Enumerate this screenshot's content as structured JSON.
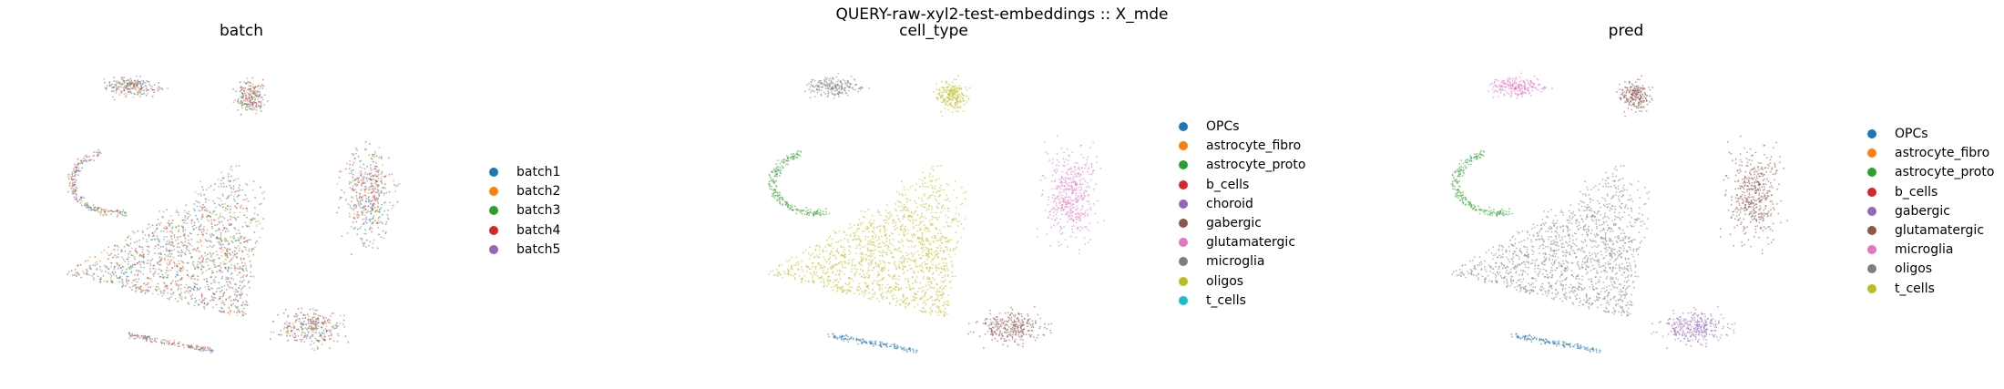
{
  "figure": {
    "suptitle": "QUERY-raw-xyl2-test-embeddings :: X_mde"
  },
  "chart_data": [
    {
      "type": "scatter",
      "title": "batch",
      "legend_position": "right",
      "categories": [
        "batch1",
        "batch2",
        "batch3",
        "batch4",
        "batch5"
      ],
      "colors": [
        "#1f77b4",
        "#ff7f0e",
        "#2ca02c",
        "#d62728",
        "#9467bd"
      ]
    },
    {
      "type": "scatter",
      "title": "cell_type",
      "legend_position": "right",
      "categories": [
        "OPCs",
        "astrocyte_fibro",
        "astrocyte_proto",
        "b_cells",
        "choroid",
        "gabergic",
        "glutamatergic",
        "microglia",
        "oligos",
        "t_cells"
      ],
      "colors": [
        "#1f77b4",
        "#ff7f0e",
        "#2ca02c",
        "#d62728",
        "#9467bd",
        "#8c564b",
        "#e377c2",
        "#7f7f7f",
        "#bcbd22",
        "#17becf"
      ]
    },
    {
      "type": "scatter",
      "title": "pred",
      "legend_position": "right",
      "categories": [
        "OPCs",
        "astrocyte_fibro",
        "astrocyte_proto",
        "b_cells",
        "gabergic",
        "glutamatergic",
        "microglia",
        "oligos",
        "t_cells"
      ],
      "colors": [
        "#1f77b4",
        "#ff7f0e",
        "#2ca02c",
        "#d62728",
        "#9467bd",
        "#8c564b",
        "#e377c2",
        "#7f7f7f",
        "#bcbd22"
      ]
    }
  ]
}
